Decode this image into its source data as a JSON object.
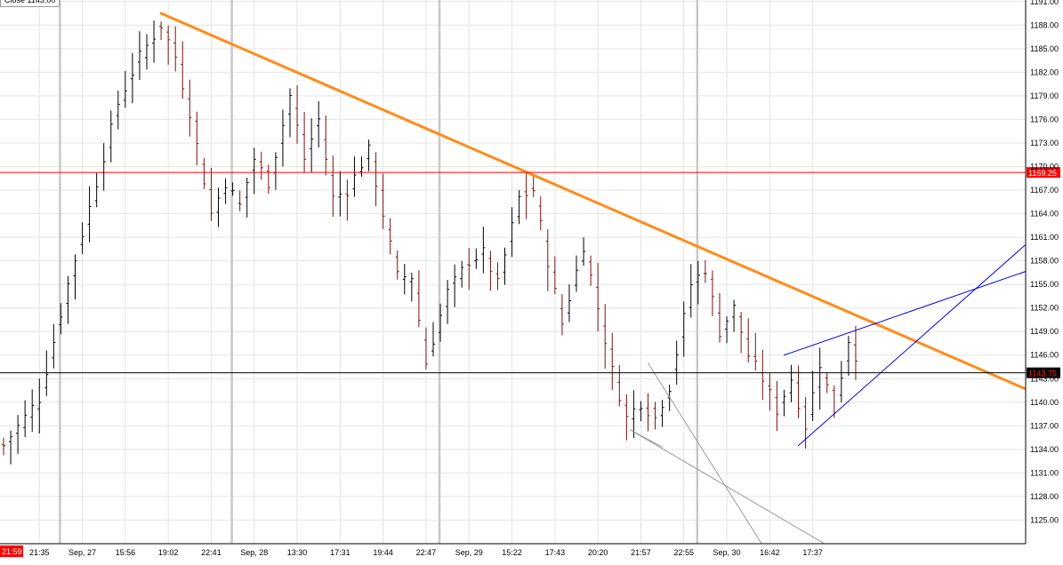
{
  "header": {
    "label": "Close 1143.00"
  },
  "chart_data": {
    "type": "candlestick",
    "title": "",
    "xlabel": "",
    "ylabel": "",
    "ylim": [
      1122.0,
      1191.2
    ],
    "y_ticks": [
      "1125.00",
      "1128.00",
      "1131.00",
      "1134.00",
      "1137.00",
      "1140.00",
      "1143.00",
      "1146.00",
      "1149.00",
      "1152.00",
      "1155.00",
      "1158.00",
      "1161.00",
      "1164.00",
      "1167.00",
      "1170.00",
      "1173.00",
      "1176.00",
      "1179.00",
      "1182.00",
      "1185.00",
      "1188.00",
      "1191.00"
    ],
    "x_ticks": [
      "21:35",
      "Sep, 27",
      "15:56",
      "19:02",
      "22:41",
      "Sep, 28",
      "13:30",
      "17:31",
      "19:44",
      "22:47",
      "Sep, 29",
      "15:22",
      "17:43",
      "20:20",
      "21:57",
      "22:55",
      "Sep, 30",
      "16:42",
      "17:37"
    ],
    "x_tick_index": [
      5,
      11,
      17,
      23,
      29,
      35,
      41,
      47,
      53,
      59,
      65,
      71,
      77,
      83,
      89,
      95,
      101,
      107,
      113
    ],
    "x_start_label": "21:59",
    "n_bars": 120,
    "grid": true,
    "day_separators_index": [
      8,
      32,
      61,
      97
    ],
    "close_path": [
      [
        0,
        1134.5
      ],
      [
        5,
        1140.5
      ],
      [
        9,
        1155
      ],
      [
        13,
        1168
      ],
      [
        16,
        1178
      ],
      [
        19,
        1184
      ],
      [
        22,
        1188
      ],
      [
        24,
        1184
      ],
      [
        26,
        1177
      ],
      [
        29,
        1164
      ],
      [
        31,
        1168
      ],
      [
        33,
        1165
      ],
      [
        35,
        1171
      ],
      [
        37,
        1168
      ],
      [
        40,
        1179
      ],
      [
        42,
        1171
      ],
      [
        44,
        1176
      ],
      [
        46,
        1166
      ],
      [
        48,
        1167
      ],
      [
        51,
        1172
      ],
      [
        53,
        1164
      ],
      [
        55,
        1156
      ],
      [
        57,
        1156
      ],
      [
        59,
        1145
      ],
      [
        62,
        1154
      ],
      [
        65,
        1158
      ],
      [
        67,
        1159
      ],
      [
        69,
        1155
      ],
      [
        72,
        1166
      ],
      [
        74,
        1167
      ],
      [
        76,
        1158
      ],
      [
        78,
        1150
      ],
      [
        81,
        1160
      ],
      [
        83,
        1152
      ],
      [
        85,
        1144
      ],
      [
        87,
        1138
      ],
      [
        89,
        1140
      ],
      [
        91,
        1138
      ],
      [
        93,
        1142
      ],
      [
        96,
        1155
      ],
      [
        98,
        1157
      ],
      [
        100,
        1149
      ],
      [
        102,
        1152
      ],
      [
        104,
        1146
      ],
      [
        106,
        1143
      ],
      [
        108,
        1139
      ],
      [
        110,
        1143
      ],
      [
        112,
        1137
      ],
      [
        114,
        1145
      ],
      [
        116,
        1139
      ],
      [
        118,
        1148
      ],
      [
        119,
        1146
      ]
    ],
    "price_markers": [
      {
        "value": 1169.25,
        "label": "1169.25",
        "color": "#ff0000",
        "bg": "#ff0000",
        "text_color": "#ffffff"
      },
      {
        "value": 1143.75,
        "label": "1143.75",
        "color": "#000000",
        "bg": "#000000",
        "text_color": "#ff2222"
      }
    ],
    "drawn_lines": [
      {
        "color": "#ff8c1a",
        "width": 3,
        "from": [
          22,
          1189.5
        ],
        "to": [
          147,
          1140
        ]
      },
      {
        "color": "#0000ee",
        "width": 1,
        "from": [
          109,
          1146
        ],
        "to": [
          147,
          1158
        ]
      },
      {
        "color": "#0000ee",
        "width": 1,
        "from": [
          111,
          1134.5
        ],
        "to": [
          147,
          1163.5
        ]
      },
      {
        "color": "#9a9a9a",
        "width": 1,
        "from": [
          87.5,
          1136.5
        ],
        "to": [
          115,
          1121.8
        ]
      },
      {
        "color": "#9a9a9a",
        "width": 1,
        "from": [
          90,
          1145
        ],
        "to": [
          106,
          1121.8
        ]
      },
      {
        "color": "#9a9a9a",
        "width": 1,
        "from": [
          87.5,
          1136.5
        ],
        "to": [
          92,
          1134.3
        ]
      }
    ]
  }
}
